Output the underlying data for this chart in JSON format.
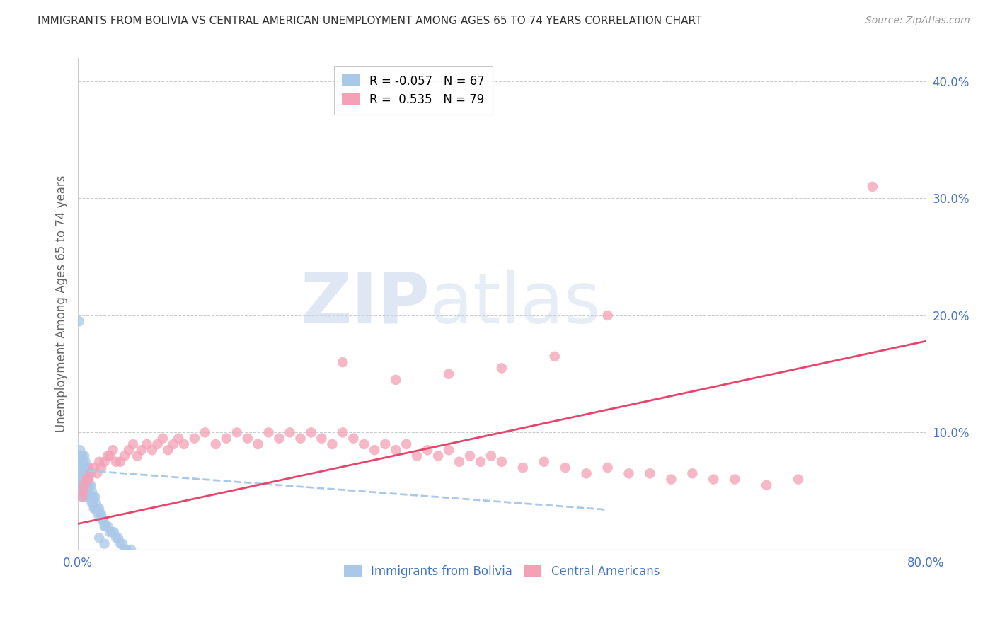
{
  "title": "IMMIGRANTS FROM BOLIVIA VS CENTRAL AMERICAN UNEMPLOYMENT AMONG AGES 65 TO 74 YEARS CORRELATION CHART",
  "source": "Source: ZipAtlas.com",
  "ylabel": "Unemployment Among Ages 65 to 74 years",
  "xlim": [
    0.0,
    0.8
  ],
  "ylim": [
    0.0,
    0.42
  ],
  "yticks": [
    0.0,
    0.1,
    0.2,
    0.3,
    0.4
  ],
  "ytick_labels": [
    "",
    "10.0%",
    "20.0%",
    "30.0%",
    "40.0%"
  ],
  "xticks": [
    0.0,
    0.1,
    0.2,
    0.3,
    0.4,
    0.5,
    0.6,
    0.7,
    0.8
  ],
  "xtick_labels": [
    "0.0%",
    "",
    "",
    "",
    "",
    "",
    "",
    "",
    "80.0%"
  ],
  "bolivia_color": "#aac8e8",
  "central_color": "#f4a0b5",
  "bolivia_R": -0.057,
  "bolivia_N": 67,
  "central_R": 0.535,
  "central_N": 79,
  "legend_label_bolivia": "Immigrants from Bolivia",
  "legend_label_central": "Central Americans",
  "watermark_zip": "ZIP",
  "watermark_atlas": "atlas",
  "background_color": "#ffffff",
  "grid_color": "#cccccc",
  "axis_label_color": "#666666",
  "tick_color": "#4472c4",
  "bolivia_scatter_x": [
    0.001,
    0.002,
    0.002,
    0.003,
    0.003,
    0.003,
    0.003,
    0.004,
    0.004,
    0.004,
    0.004,
    0.005,
    0.005,
    0.005,
    0.005,
    0.006,
    0.006,
    0.006,
    0.006,
    0.007,
    0.007,
    0.007,
    0.007,
    0.008,
    0.008,
    0.008,
    0.009,
    0.009,
    0.009,
    0.01,
    0.01,
    0.01,
    0.011,
    0.011,
    0.012,
    0.012,
    0.013,
    0.013,
    0.014,
    0.015,
    0.015,
    0.016,
    0.016,
    0.017,
    0.017,
    0.018,
    0.019,
    0.02,
    0.021,
    0.022,
    0.023,
    0.024,
    0.025,
    0.026,
    0.028,
    0.03,
    0.032,
    0.034,
    0.036,
    0.038,
    0.04,
    0.042,
    0.044,
    0.046,
    0.05,
    0.02,
    0.025
  ],
  "bolivia_scatter_y": [
    0.195,
    0.075,
    0.085,
    0.055,
    0.065,
    0.075,
    0.08,
    0.05,
    0.06,
    0.07,
    0.08,
    0.045,
    0.055,
    0.065,
    0.075,
    0.05,
    0.06,
    0.07,
    0.08,
    0.045,
    0.055,
    0.065,
    0.075,
    0.05,
    0.06,
    0.07,
    0.045,
    0.055,
    0.065,
    0.05,
    0.06,
    0.07,
    0.045,
    0.055,
    0.045,
    0.055,
    0.04,
    0.05,
    0.04,
    0.035,
    0.045,
    0.035,
    0.045,
    0.035,
    0.04,
    0.035,
    0.03,
    0.035,
    0.03,
    0.03,
    0.025,
    0.025,
    0.02,
    0.02,
    0.02,
    0.015,
    0.015,
    0.015,
    0.01,
    0.01,
    0.005,
    0.005,
    0.0,
    0.0,
    0.0,
    0.01,
    0.005
  ],
  "central_scatter_x": [
    0.004,
    0.005,
    0.006,
    0.008,
    0.01,
    0.012,
    0.015,
    0.018,
    0.02,
    0.022,
    0.025,
    0.028,
    0.03,
    0.033,
    0.036,
    0.04,
    0.044,
    0.048,
    0.052,
    0.056,
    0.06,
    0.065,
    0.07,
    0.075,
    0.08,
    0.085,
    0.09,
    0.095,
    0.1,
    0.11,
    0.12,
    0.13,
    0.14,
    0.15,
    0.16,
    0.17,
    0.18,
    0.19,
    0.2,
    0.21,
    0.22,
    0.23,
    0.24,
    0.25,
    0.26,
    0.27,
    0.28,
    0.29,
    0.3,
    0.31,
    0.32,
    0.33,
    0.34,
    0.35,
    0.36,
    0.37,
    0.38,
    0.39,
    0.4,
    0.42,
    0.44,
    0.46,
    0.48,
    0.5,
    0.52,
    0.54,
    0.56,
    0.58,
    0.6,
    0.62,
    0.65,
    0.68,
    0.5,
    0.45,
    0.4,
    0.35,
    0.3,
    0.25,
    0.75
  ],
  "central_scatter_y": [
    0.045,
    0.05,
    0.055,
    0.06,
    0.06,
    0.065,
    0.07,
    0.065,
    0.075,
    0.07,
    0.075,
    0.08,
    0.08,
    0.085,
    0.075,
    0.075,
    0.08,
    0.085,
    0.09,
    0.08,
    0.085,
    0.09,
    0.085,
    0.09,
    0.095,
    0.085,
    0.09,
    0.095,
    0.09,
    0.095,
    0.1,
    0.09,
    0.095,
    0.1,
    0.095,
    0.09,
    0.1,
    0.095,
    0.1,
    0.095,
    0.1,
    0.095,
    0.09,
    0.1,
    0.095,
    0.09,
    0.085,
    0.09,
    0.085,
    0.09,
    0.08,
    0.085,
    0.08,
    0.085,
    0.075,
    0.08,
    0.075,
    0.08,
    0.075,
    0.07,
    0.075,
    0.07,
    0.065,
    0.07,
    0.065,
    0.065,
    0.06,
    0.065,
    0.06,
    0.06,
    0.055,
    0.06,
    0.2,
    0.165,
    0.155,
    0.15,
    0.145,
    0.16,
    0.31
  ],
  "bolivia_trend_x": [
    0.0,
    0.5
  ],
  "bolivia_trend_y": [
    0.068,
    0.034
  ],
  "central_trend_x": [
    0.0,
    0.8
  ],
  "central_trend_y": [
    0.022,
    0.178
  ]
}
